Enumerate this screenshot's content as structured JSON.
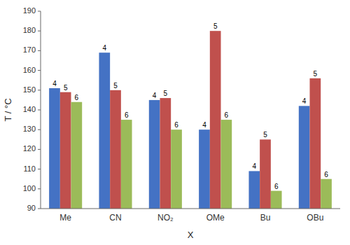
{
  "chart_data": {
    "type": "bar",
    "categories": [
      "Me",
      "CN",
      "NO₂",
      "OMe",
      "Bu",
      "OBu"
    ],
    "series": [
      {
        "name": "4",
        "color": "#4472C4",
        "values": [
          151,
          169,
          145,
          130,
          109,
          142
        ]
      },
      {
        "name": "5",
        "color": "#C0504D",
        "values": [
          149,
          150,
          146,
          180,
          125,
          156
        ]
      },
      {
        "name": "6",
        "color": "#9BBB59",
        "values": [
          144,
          135,
          130,
          135,
          99,
          105
        ]
      }
    ],
    "xlabel": "X",
    "ylabel": "T / °C",
    "ylim": [
      90,
      190
    ],
    "yticks": [
      90,
      100,
      110,
      120,
      130,
      140,
      150,
      160,
      170,
      180,
      190
    ],
    "grid": false
  }
}
